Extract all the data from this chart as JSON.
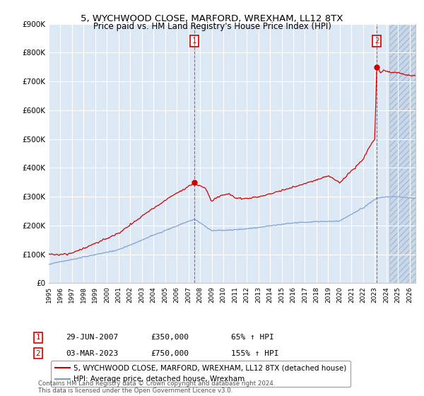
{
  "title": "5, WYCHWOOD CLOSE, MARFORD, WREXHAM, LL12 8TX",
  "subtitle": "Price paid vs. HM Land Registry's House Price Index (HPI)",
  "ylim": [
    0,
    900000
  ],
  "xlim_start": 1995.0,
  "xlim_end": 2026.5,
  "purchase1_date": 2007.49,
  "purchase1_price": 350000,
  "purchase1_label": "1",
  "purchase2_date": 2023.17,
  "purchase2_price": 750000,
  "purchase2_label": "2",
  "vline1_x": 2007.49,
  "vline2_x": 2023.17,
  "hatch_start": 2024.25,
  "legend_line1": "5, WYCHWOOD CLOSE, MARFORD, WREXHAM, LL12 8TX (detached house)",
  "legend_line2": "HPI: Average price, detached house, Wrexham",
  "annotation1_date": "29-JUN-2007",
  "annotation1_price": "£350,000",
  "annotation1_hpi": "65% ↑ HPI",
  "annotation2_date": "03-MAR-2023",
  "annotation2_price": "£750,000",
  "annotation2_hpi": "155% ↑ HPI",
  "footer": "Contains HM Land Registry data © Crown copyright and database right 2024.\nThis data is licensed under the Open Government Licence v3.0.",
  "line_color_red": "#cc0000",
  "line_color_blue": "#7799cc",
  "bg_color": "#dde8f5",
  "grid_color": "#ffffff",
  "label_box_color": "#cc0000",
  "label_text_color": "#cc0000"
}
